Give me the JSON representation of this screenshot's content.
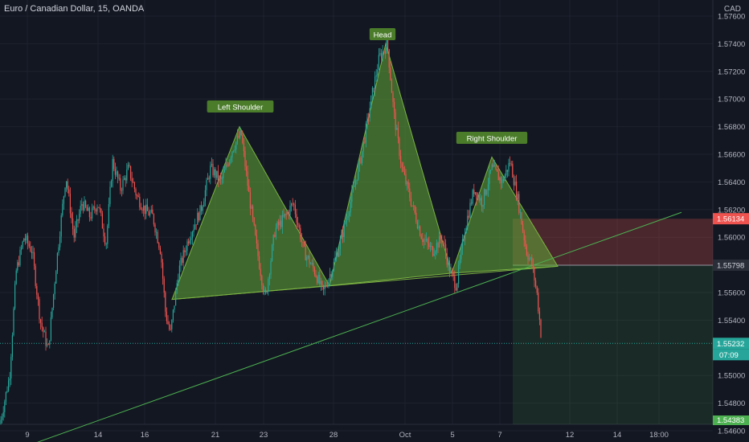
{
  "header": {
    "symbol": "Euro / Canadian Dollar, 15, OANDA",
    "currency": "CAD"
  },
  "price_tags": {
    "stop": {
      "value": "1.56134",
      "color": "#ef5350"
    },
    "entry": {
      "value": "1.55798",
      "color": "#2a2e39"
    },
    "last": {
      "value": "1.55232",
      "color": "#26a69a"
    },
    "countdown": "07:09",
    "target": {
      "value": "1.54383",
      "color": "#4caf50"
    }
  },
  "chart_data": {
    "type": "candlestick",
    "x_ticks": [
      "9",
      "14",
      "16",
      "21",
      "23",
      "28",
      "Oct",
      "5",
      "7",
      "12",
      "14",
      "18:00"
    ],
    "y_ticks": [
      "1.57600",
      "1.57400",
      "1.57200",
      "1.57000",
      "1.56800",
      "1.56600",
      "1.56400",
      "1.56200",
      "1.56000",
      "1.55600",
      "1.55400",
      "1.55000",
      "1.54800",
      "1.54600"
    ],
    "ylim": [
      1.5435,
      1.577
    ],
    "pattern": "head-and-shoulders",
    "annotations": [
      "Left Shoulder",
      "Head",
      "Right Shoulder"
    ],
    "shoulders": [
      {
        "label": "Left Shoulder",
        "peak": 1.568
      },
      {
        "label": "Head",
        "peak": 1.574
      },
      {
        "label": "Right Shoulder",
        "peak": 1.5658
      }
    ],
    "neckline": {
      "start": 1.5555,
      "end": 1.5579
    },
    "trendline": {
      "start": 1.5442,
      "end": 1.5618
    },
    "trade": {
      "stop": 1.56134,
      "entry": 1.55798,
      "target": 1.54383,
      "last": 1.55232
    },
    "price_path": [
      [
        0,
        1.5465
      ],
      [
        12,
        1.55
      ],
      [
        20,
        1.5575
      ],
      [
        30,
        1.56
      ],
      [
        40,
        1.559
      ],
      [
        50,
        1.554
      ],
      [
        60,
        1.5518
      ],
      [
        70,
        1.558
      ],
      [
        82,
        1.5645
      ],
      [
        92,
        1.56
      ],
      [
        102,
        1.5625
      ],
      [
        112,
        1.5615
      ],
      [
        122,
        1.5625
      ],
      [
        132,
        1.5595
      ],
      [
        140,
        1.5655
      ],
      [
        150,
        1.5635
      ],
      [
        160,
        1.565
      ],
      [
        170,
        1.563
      ],
      [
        180,
        1.562
      ],
      [
        190,
        1.5615
      ],
      [
        200,
        1.559
      ],
      [
        206,
        1.5545
      ],
      [
        212,
        1.553
      ],
      [
        222,
        1.5575
      ],
      [
        235,
        1.56
      ],
      [
        250,
        1.562
      ],
      [
        262,
        1.565
      ],
      [
        275,
        1.564
      ],
      [
        290,
        1.5665
      ],
      [
        300,
        1.5675
      ],
      [
        310,
        1.563
      ],
      [
        320,
        1.559
      ],
      [
        330,
        1.5555
      ],
      [
        342,
        1.5605
      ],
      [
        355,
        1.5615
      ],
      [
        365,
        1.5625
      ],
      [
        378,
        1.559
      ],
      [
        392,
        1.5575
      ],
      [
        402,
        1.556
      ],
      [
        415,
        1.558
      ],
      [
        425,
        1.56
      ],
      [
        438,
        1.563
      ],
      [
        450,
        1.566
      ],
      [
        462,
        1.57
      ],
      [
        472,
        1.573
      ],
      [
        482,
        1.574
      ],
      [
        490,
        1.569
      ],
      [
        500,
        1.565
      ],
      [
        512,
        1.5625
      ],
      [
        525,
        1.56
      ],
      [
        538,
        1.559
      ],
      [
        550,
        1.56
      ],
      [
        560,
        1.5575
      ],
      [
        568,
        1.5565
      ],
      [
        578,
        1.5605
      ],
      [
        590,
        1.5635
      ],
      [
        600,
        1.5625
      ],
      [
        612,
        1.565
      ],
      [
        625,
        1.564
      ],
      [
        635,
        1.5655
      ],
      [
        645,
        1.5625
      ],
      [
        655,
        1.559
      ],
      [
        662,
        1.558
      ],
      [
        668,
        1.556
      ],
      [
        674,
        1.5525
      ]
    ]
  }
}
